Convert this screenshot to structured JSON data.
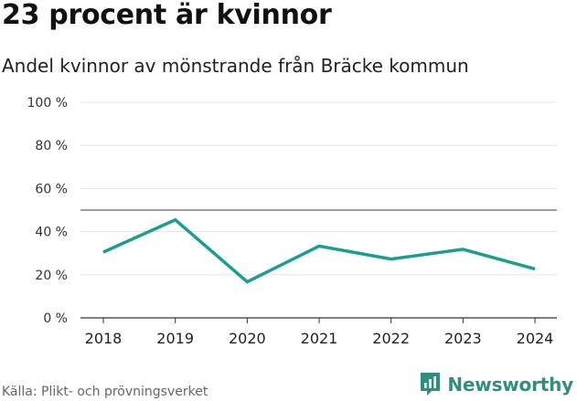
{
  "headline": "23 procent är kvinnor",
  "subtitle": "Andel kvinnor av mönstrande från Bräcke kommun",
  "source": "Källa: Plikt- och prövningsverket",
  "brand": {
    "name": "Newsworthy",
    "icon": "newsworthy-logo-icon",
    "color": "#2f8f7f"
  },
  "colors": {
    "line": "#1a9e90",
    "reference_line": "#666666",
    "grid": "#e3e3e3"
  },
  "chart_data": {
    "type": "line",
    "title": "23 procent är kvinnor",
    "subtitle": "Andel kvinnor av mönstrande från Bräcke kommun",
    "xlabel": "",
    "ylabel": "",
    "categories": [
      "2018",
      "2019",
      "2020",
      "2021",
      "2022",
      "2023",
      "2024"
    ],
    "series": [
      {
        "values": [
          30.5,
          45.5,
          16.7,
          33.3,
          27.3,
          31.8,
          22.7
        ]
      }
    ],
    "ylim": [
      0,
      100
    ],
    "yticks": [
      0,
      20,
      40,
      60,
      80,
      100
    ],
    "ytick_labels": [
      "0 %",
      "20 %",
      "40 %",
      "60 %",
      "80 %",
      "100 %"
    ],
    "reference_line": 50,
    "grid": true,
    "legend": "none"
  }
}
